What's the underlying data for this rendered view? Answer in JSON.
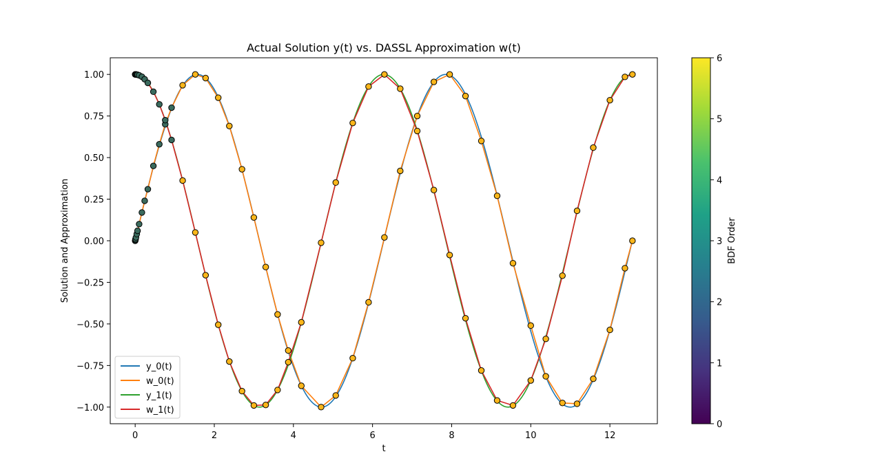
{
  "chart_data": {
    "type": "line",
    "title": "Actual Solution y(t) vs. DASSL Approximation w(t)",
    "xlabel": "t",
    "ylabel": "Solution and Approximation",
    "xlim": [
      -0.63,
      13.2
    ],
    "ylim": [
      -1.1,
      1.1
    ],
    "xticks": [
      0,
      2,
      4,
      6,
      8,
      10,
      12
    ],
    "yticks": [
      -1.0,
      -0.75,
      -0.5,
      -0.25,
      0.0,
      0.25,
      0.5,
      0.75,
      1.0
    ],
    "ytick_labels": [
      "−1.00",
      "−0.75",
      "−0.50",
      "−0.25",
      "0.00",
      "0.25",
      "0.50",
      "0.75",
      "1.00"
    ],
    "grid": false,
    "legend_location": "lower-left",
    "series": [
      {
        "name": "y_0(t)",
        "color": "#1f77b4",
        "function": "sin",
        "t_range": [
          0,
          12.566
        ]
      },
      {
        "name": "w_0(t)",
        "color": "#ff7f0e",
        "t": [
          0,
          0.005,
          0.01,
          0.02,
          0.04,
          0.06,
          0.1,
          0.17,
          0.24,
          0.32,
          0.46,
          0.61,
          0.76,
          0.92,
          1.2,
          1.52,
          1.78,
          2.1,
          2.38,
          2.7,
          3.0,
          3.3,
          3.6,
          3.87,
          4.2,
          4.7,
          5.07,
          5.5,
          5.9,
          6.3,
          6.7,
          7.13,
          7.55,
          7.95,
          8.35,
          8.75,
          9.15,
          9.55,
          10.0,
          10.38,
          10.8,
          11.17,
          11.58,
          12.0,
          12.38,
          12.57
        ],
        "values": [
          0.0,
          0.005,
          0.01,
          0.02,
          0.04,
          0.06,
          0.1,
          0.17,
          0.24,
          0.31,
          0.45,
          0.58,
          0.7,
          0.8,
          0.935,
          1.0,
          0.978,
          0.86,
          0.69,
          0.43,
          0.14,
          -0.158,
          -0.443,
          -0.66,
          -0.872,
          -1.0,
          -0.93,
          -0.706,
          -0.37,
          0.02,
          0.42,
          0.75,
          0.955,
          1.0,
          0.87,
          0.6,
          0.27,
          -0.135,
          -0.51,
          -0.815,
          -0.975,
          -0.98,
          -0.83,
          -0.536,
          -0.165,
          0.0
        ]
      },
      {
        "name": "y_1(t)",
        "color": "#2ca02c",
        "function": "cos",
        "t_range": [
          0,
          12.566
        ]
      },
      {
        "name": "w_1(t)",
        "color": "#d62728",
        "t": [
          0,
          0.005,
          0.01,
          0.02,
          0.04,
          0.06,
          0.1,
          0.17,
          0.24,
          0.32,
          0.46,
          0.61,
          0.76,
          0.92,
          1.2,
          1.52,
          1.78,
          2.1,
          2.38,
          2.7,
          3.0,
          3.3,
          3.6,
          3.87,
          4.2,
          4.7,
          5.07,
          5.5,
          5.9,
          6.3,
          6.7,
          7.13,
          7.55,
          7.95,
          8.35,
          8.75,
          9.15,
          9.55,
          10.0,
          10.38,
          10.8,
          11.17,
          11.58,
          12.0,
          12.38,
          12.57
        ],
        "values": [
          1.0,
          1.0,
          1.0,
          1.0,
          0.999,
          0.998,
          0.995,
          0.986,
          0.971,
          0.949,
          0.896,
          0.82,
          0.725,
          0.606,
          0.362,
          0.05,
          -0.207,
          -0.505,
          -0.726,
          -0.904,
          -0.99,
          -0.987,
          -0.897,
          -0.73,
          -0.49,
          -0.012,
          0.35,
          0.708,
          0.927,
          1.0,
          0.914,
          0.66,
          0.305,
          -0.086,
          -0.466,
          -0.78,
          -0.96,
          -0.99,
          -0.84,
          -0.59,
          -0.21,
          0.18,
          0.56,
          0.845,
          0.985,
          1.0
        ]
      }
    ],
    "markers": {
      "fill": "#fbb61a",
      "edge": "#000000"
    },
    "colorbar": {
      "label": "BDF Order",
      "range": [
        0,
        6
      ],
      "ticks": [
        0,
        1,
        2,
        3,
        4,
        5,
        6
      ],
      "colormap": [
        "#440154",
        "#46327e",
        "#365c8d",
        "#277f8e",
        "#1fa187",
        "#4ac16d",
        "#a0da39",
        "#fde725"
      ]
    }
  }
}
